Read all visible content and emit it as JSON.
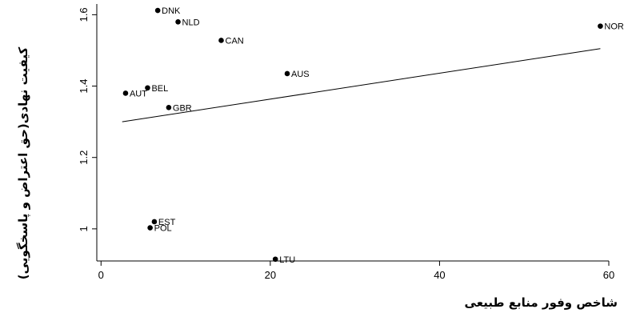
{
  "chart_data": {
    "type": "scatter",
    "xlabel": "شاخص وفور منابع طبیعی",
    "ylabel": "کیفیت نهادی(حق اعتراض و پاسخگویی)",
    "xlim": [
      -0.5,
      60
    ],
    "ylim": [
      0.91,
      1.63
    ],
    "x_ticks": [
      0,
      20,
      40,
      60
    ],
    "y_ticks": [
      1,
      1.2,
      1.4,
      1.6
    ],
    "y_tick_labels": [
      "1",
      "1.2",
      "1.4",
      "1.6"
    ],
    "grid": false,
    "points": [
      {
        "label": "DNK",
        "x": 6.7,
        "y": 1.612
      },
      {
        "label": "NLD",
        "x": 9.1,
        "y": 1.58
      },
      {
        "label": "CAN",
        "x": 14.2,
        "y": 1.528
      },
      {
        "label": "NOR",
        "x": 59.0,
        "y": 1.568
      },
      {
        "label": "AUS",
        "x": 22.0,
        "y": 1.435
      },
      {
        "label": "BEL",
        "x": 5.5,
        "y": 1.395
      },
      {
        "label": "AUT",
        "x": 2.9,
        "y": 1.38
      },
      {
        "label": "GBR",
        "x": 8.0,
        "y": 1.34
      },
      {
        "label": "EST",
        "x": 6.3,
        "y": 1.02
      },
      {
        "label": "POL",
        "x": 5.8,
        "y": 1.003
      },
      {
        "label": "LTU",
        "x": 20.6,
        "y": 0.915
      }
    ],
    "fit_line": {
      "x": [
        2.5,
        59.0
      ],
      "y": [
        1.3,
        1.505
      ]
    }
  }
}
